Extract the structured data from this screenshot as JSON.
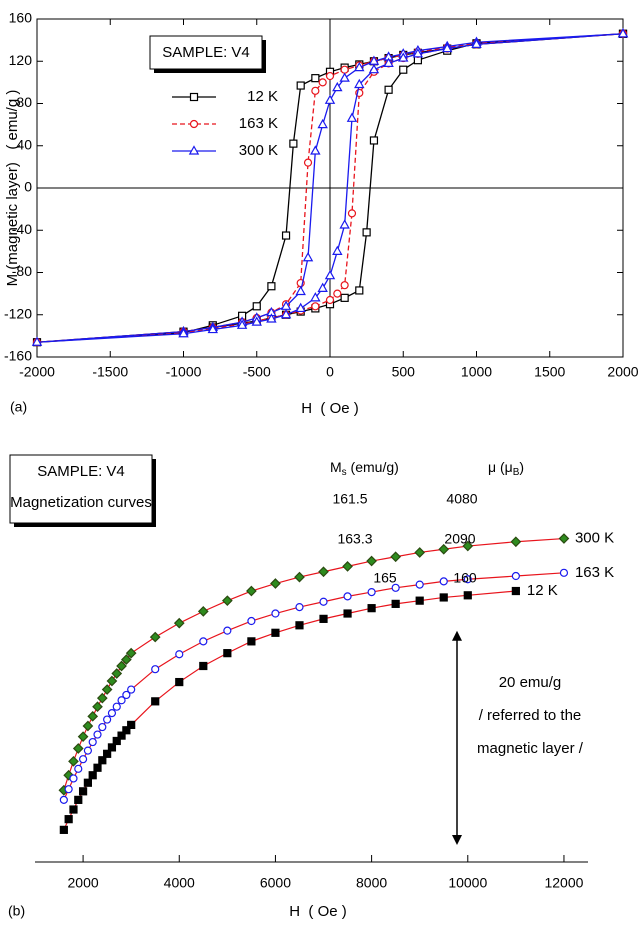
{
  "chart_data": [
    {
      "type": "line",
      "panel_label": "(a)",
      "x_label": "H  ( Oe )",
      "y_label": "M (magnetic layer)   ( emu/g )",
      "legend_title": "SAMPLE: V4",
      "xlim": [
        -2000,
        2000
      ],
      "xticks": [
        -2000,
        -1500,
        -1000,
        -500,
        0,
        500,
        1000,
        1500,
        2000
      ],
      "ylim": [
        -160,
        160
      ],
      "yticks": [
        -160,
        -120,
        -80,
        -40,
        0,
        40,
        80,
        120,
        160
      ],
      "series": [
        {
          "name": "12 K",
          "color": "#000000",
          "marker": "square",
          "dashed": false,
          "x": [
            2000,
            1000,
            800,
            600,
            500,
            400,
            300,
            200,
            100,
            0,
            -100,
            -200,
            -250,
            -300,
            -400,
            -500,
            -600,
            -800,
            -1000,
            -2000,
            -1000,
            -800,
            -600,
            -500,
            -400,
            -300,
            -200,
            -100,
            0,
            100,
            200,
            250,
            300,
            400,
            500,
            600,
            800,
            1000,
            2000
          ],
          "values": [
            146,
            136,
            132,
            128,
            126,
            123,
            120,
            117,
            114,
            110,
            104,
            97,
            42,
            -45,
            -93,
            -112,
            -121,
            -130,
            -137,
            -146,
            -136,
            -132,
            -128,
            -126,
            -123,
            -120,
            -117,
            -114,
            -110,
            -104,
            -97,
            -42,
            45,
            93,
            112,
            121,
            130,
            137,
            146
          ]
        },
        {
          "name": "163 K",
          "color": "#e8141c",
          "marker": "circle",
          "dashed": true,
          "x": [
            2000,
            1000,
            800,
            600,
            500,
            400,
            300,
            200,
            100,
            0,
            -50,
            -100,
            -150,
            -200,
            -300,
            -400,
            -500,
            -600,
            -800,
            -1000,
            -2000,
            -1000,
            -800,
            -600,
            -500,
            -400,
            -300,
            -200,
            -100,
            0,
            50,
            100,
            150,
            200,
            300,
            400,
            500,
            600,
            800,
            1000,
            2000
          ],
          "values": [
            146,
            137,
            133,
            129,
            126,
            123,
            120,
            116,
            112,
            106,
            100,
            92,
            24,
            -90,
            -110,
            -118,
            -123,
            -127,
            -132,
            -136,
            -146,
            -137,
            -133,
            -129,
            -126,
            -123,
            -120,
            -116,
            -112,
            -106,
            -100,
            -92,
            -24,
            90,
            110,
            118,
            123,
            127,
            132,
            136,
            146
          ]
        },
        {
          "name": "300 K",
          "color": "#1a1aee",
          "marker": "triangle",
          "dashed": false,
          "x": [
            2000,
            1000,
            800,
            600,
            500,
            400,
            300,
            200,
            100,
            50,
            0,
            -50,
            -100,
            -150,
            -200,
            -300,
            -400,
            -500,
            -600,
            -800,
            -1000,
            -2000,
            -1000,
            -800,
            -600,
            -500,
            -400,
            -300,
            -200,
            -100,
            -50,
            0,
            50,
            100,
            150,
            200,
            300,
            400,
            500,
            600,
            800,
            1000,
            2000
          ],
          "values": [
            146,
            138,
            134,
            130,
            127,
            124,
            120,
            114,
            104,
            95,
            83,
            60,
            35,
            -66,
            -98,
            -112,
            -118,
            -123,
            -127,
            -132,
            -136,
            -146,
            -138,
            -134,
            -130,
            -127,
            -124,
            -120,
            -114,
            -104,
            -95,
            -83,
            -60,
            -35,
            66,
            98,
            112,
            118,
            123,
            127,
            132,
            136,
            146
          ]
        }
      ]
    },
    {
      "type": "scatter",
      "panel_label": "(b)",
      "x_label": "H  ( Oe )",
      "annotation_box": [
        "SAMPLE: V4",
        "Magnetization curves"
      ],
      "ms_header": {
        "main": "M",
        "sub": "s",
        "rest": " (emu/g)"
      },
      "mu_header": {
        "main": "μ (μ",
        "sub": "B",
        "rest": ")"
      },
      "scale_bar": {
        "value": 20,
        "lines": [
          "20 emu/g",
          "/ referred to the",
          "magnetic layer /"
        ]
      },
      "fit_color": "#e8141c",
      "xlim": [
        1000,
        12500
      ],
      "xticks": [
        2000,
        4000,
        6000,
        8000,
        10000,
        12000
      ],
      "ylim": [
        0,
        38
      ],
      "series": [
        {
          "name": "300 K",
          "color": "#2e8b1e",
          "marker": "diamond",
          "ms": 161.5,
          "mu": 4080,
          "x": [
            1600,
            1700,
            1800,
            1900,
            2000,
            2100,
            2200,
            2300,
            2400,
            2500,
            2600,
            2700,
            2800,
            2900,
            3000,
            3500,
            4000,
            4500,
            5000,
            5500,
            6000,
            6500,
            7000,
            7500,
            8000,
            8500,
            9000,
            9500,
            10000,
            11000,
            12000
          ],
          "values": [
            6.7,
            8.1,
            9.4,
            10.6,
            11.7,
            12.7,
            13.6,
            14.5,
            15.3,
            16.1,
            16.9,
            17.6,
            18.3,
            18.9,
            19.5,
            21.0,
            22.3,
            23.4,
            24.4,
            25.3,
            26.0,
            26.6,
            27.1,
            27.6,
            28.1,
            28.5,
            28.9,
            29.2,
            29.5,
            29.9,
            30.2
          ]
        },
        {
          "name": "163 K",
          "color": "#1a1aee",
          "marker": "circle",
          "ms": 163.3,
          "mu": 2090,
          "x": [
            1600,
            1700,
            1800,
            1900,
            2000,
            2100,
            2200,
            2300,
            2400,
            2500,
            2600,
            2700,
            2800,
            2900,
            3000,
            3500,
            4000,
            4500,
            5000,
            5500,
            6000,
            6500,
            7000,
            7500,
            8000,
            8500,
            9000,
            9500,
            10000,
            11000,
            12000
          ],
          "values": [
            5.8,
            6.8,
            7.8,
            8.7,
            9.6,
            10.4,
            11.2,
            11.9,
            12.6,
            13.3,
            13.9,
            14.5,
            15.1,
            15.6,
            16.1,
            18.0,
            19.4,
            20.6,
            21.6,
            22.5,
            23.2,
            23.8,
            24.3,
            24.8,
            25.2,
            25.6,
            25.9,
            26.2,
            26.4,
            26.7,
            27.0
          ]
        },
        {
          "name": "12 K",
          "color": "#000000",
          "marker": "square",
          "ms": 165,
          "mu": 160,
          "x": [
            1600,
            1700,
            1800,
            1900,
            2000,
            2100,
            2200,
            2300,
            2400,
            2500,
            2600,
            2700,
            2800,
            2900,
            3000,
            3500,
            4000,
            4500,
            5000,
            5500,
            6000,
            6500,
            7000,
            7500,
            8000,
            8500,
            9000,
            9500,
            10000,
            11000
          ],
          "values": [
            3.0,
            4.0,
            4.9,
            5.8,
            6.6,
            7.4,
            8.1,
            8.8,
            9.5,
            10.1,
            10.7,
            11.3,
            11.8,
            12.3,
            12.8,
            15.0,
            16.8,
            18.3,
            19.5,
            20.6,
            21.4,
            22.1,
            22.7,
            23.2,
            23.7,
            24.1,
            24.4,
            24.7,
            24.9,
            25.3
          ]
        }
      ]
    }
  ]
}
